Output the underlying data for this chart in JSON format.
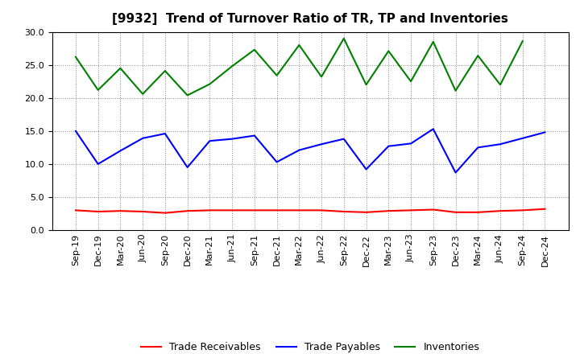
{
  "title": "[9932]  Trend of Turnover Ratio of TR, TP and Inventories",
  "x_labels": [
    "Sep-19",
    "Dec-19",
    "Mar-20",
    "Jun-20",
    "Sep-20",
    "Dec-20",
    "Mar-21",
    "Jun-21",
    "Sep-21",
    "Dec-21",
    "Mar-22",
    "Jun-22",
    "Sep-22",
    "Dec-22",
    "Mar-23",
    "Jun-23",
    "Sep-23",
    "Dec-23",
    "Mar-24",
    "Jun-24",
    "Sep-24",
    "Dec-24"
  ],
  "trade_receivables": [
    3.0,
    2.8,
    2.9,
    2.8,
    2.6,
    2.9,
    3.0,
    3.0,
    3.0,
    3.0,
    3.0,
    3.0,
    2.8,
    2.7,
    2.9,
    3.0,
    3.1,
    2.7,
    2.7,
    2.9,
    3.0,
    3.2
  ],
  "trade_payables": [
    15.0,
    10.0,
    12.0,
    13.9,
    14.6,
    9.5,
    13.5,
    13.8,
    14.3,
    10.3,
    12.1,
    13.0,
    13.8,
    9.2,
    12.7,
    13.1,
    15.3,
    8.7,
    12.5,
    13.0,
    13.9,
    14.8
  ],
  "inventories": [
    26.2,
    21.2,
    24.5,
    20.6,
    24.1,
    20.4,
    22.1,
    24.8,
    27.3,
    23.4,
    28.0,
    23.2,
    29.0,
    22.0,
    27.1,
    22.5,
    28.5,
    21.1,
    26.4,
    22.0,
    28.6,
    null
  ],
  "ylim": [
    0.0,
    30.0
  ],
  "yticks": [
    0.0,
    5.0,
    10.0,
    15.0,
    20.0,
    25.0,
    30.0
  ],
  "color_tr": "#ff0000",
  "color_tp": "#0000ff",
  "color_inv": "#008000",
  "legend_tr": "Trade Receivables",
  "legend_tp": "Trade Payables",
  "legend_inv": "Inventories",
  "bg_color": "#ffffff",
  "plot_bg_color": "#ffffff",
  "title_fontsize": 11,
  "tick_fontsize": 8,
  "line_width": 1.5
}
